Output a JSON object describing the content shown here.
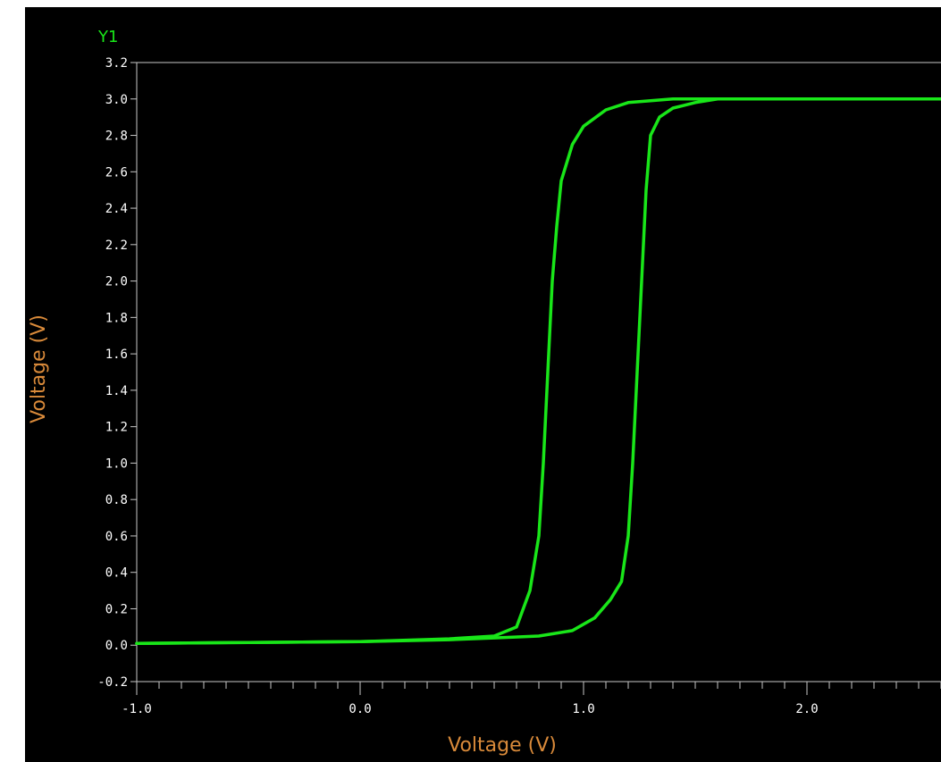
{
  "colors": {
    "background": "#000000",
    "axis": "#c8c8c8",
    "tick_label": "#ffffff",
    "axis_label": "#d98a3a",
    "trace": "#19e619"
  },
  "chart_data": {
    "type": "line",
    "series_tag": "Y1",
    "xlabel": "Voltage (V)",
    "ylabel": "Voltage (V)",
    "xlim": [
      -1.0,
      2.6
    ],
    "ylim": [
      -0.2,
      3.2
    ],
    "x_ticks": [
      "-1.0",
      "0.0",
      "1.0",
      "2.0"
    ],
    "x_tick_values": [
      -1.0,
      0.0,
      1.0,
      2.0
    ],
    "x_minor_step": 0.1,
    "y_ticks": [
      "-0.2",
      "0.0",
      "0.2",
      "0.4",
      "0.6",
      "0.8",
      "1.0",
      "1.2",
      "1.4",
      "1.6",
      "1.8",
      "2.0",
      "2.2",
      "2.4",
      "2.6",
      "2.8",
      "3.0",
      "3.2"
    ],
    "y_tick_values": [
      -0.2,
      0.0,
      0.2,
      0.4,
      0.6,
      0.8,
      1.0,
      1.2,
      1.4,
      1.6,
      1.8,
      2.0,
      2.2,
      2.4,
      2.6,
      2.8,
      3.0,
      3.2
    ],
    "grid": false,
    "series": [
      {
        "x": [
          -1.0,
          -0.5,
          0.0,
          0.4,
          0.6,
          0.7,
          0.76,
          0.8,
          0.82,
          0.84,
          0.86,
          0.88,
          0.9,
          0.95,
          1.0,
          1.1,
          1.2,
          1.4,
          1.6,
          2.0,
          2.6
        ],
        "y": [
          0.01,
          0.015,
          0.02,
          0.035,
          0.05,
          0.1,
          0.3,
          0.6,
          1.0,
          1.5,
          2.0,
          2.3,
          2.55,
          2.75,
          2.85,
          2.94,
          2.98,
          3.0,
          3.0,
          3.0,
          3.0
        ]
      },
      {
        "x": [
          2.6,
          2.0,
          1.6,
          1.5,
          1.4,
          1.34,
          1.3,
          1.28,
          1.26,
          1.24,
          1.22,
          1.2,
          1.17,
          1.12,
          1.05,
          0.95,
          0.8,
          0.6,
          0.4,
          0.0,
          -0.5,
          -1.0
        ],
        "y": [
          3.0,
          3.0,
          3.0,
          2.98,
          2.95,
          2.9,
          2.8,
          2.5,
          2.0,
          1.5,
          1.0,
          0.6,
          0.35,
          0.25,
          0.15,
          0.08,
          0.05,
          0.04,
          0.03,
          0.02,
          0.015,
          0.01
        ]
      }
    ]
  }
}
